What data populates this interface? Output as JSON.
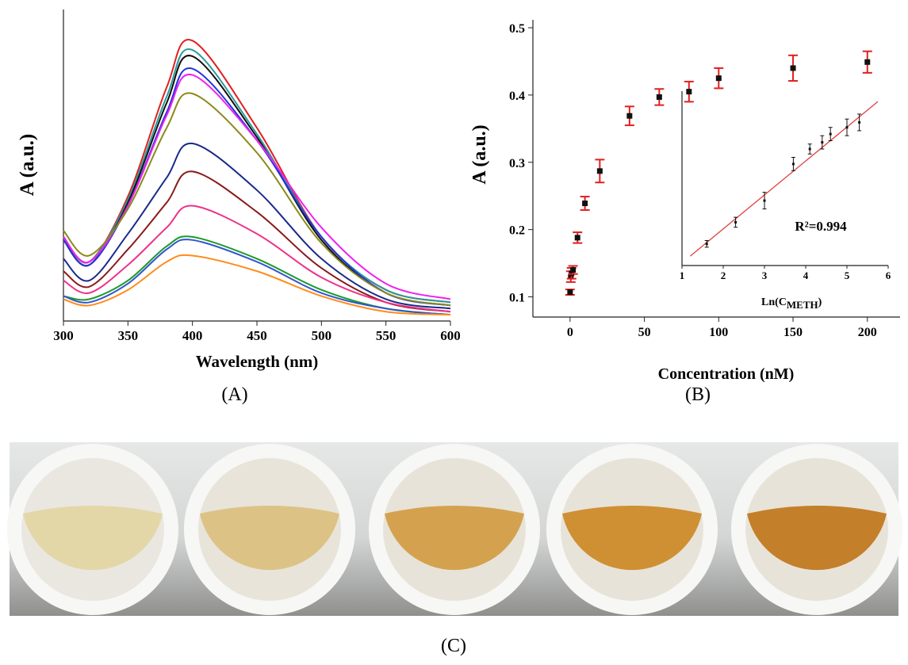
{
  "chart_data": [
    {
      "type": "line",
      "label": "(A)",
      "ylabel": "A (a.u.)",
      "xlabel": "Wavelength (nm)",
      "x": [
        300,
        320,
        350,
        380,
        400,
        450,
        500,
        550,
        600
      ],
      "xlim": [
        300,
        600
      ],
      "xticks": [
        300,
        350,
        400,
        450,
        500,
        550,
        600
      ],
      "ylim": [
        0,
        1
      ],
      "series": [
        {
          "color": "#e02020",
          "values": [
            0.27,
            0.19,
            0.4,
            0.75,
            0.9,
            0.62,
            0.27,
            0.1,
            0.06
          ]
        },
        {
          "color": "#2a9a9a",
          "values": [
            0.27,
            0.19,
            0.39,
            0.72,
            0.87,
            0.6,
            0.27,
            0.1,
            0.06
          ]
        },
        {
          "color": "#111111",
          "values": [
            0.26,
            0.18,
            0.38,
            0.7,
            0.85,
            0.59,
            0.26,
            0.09,
            0.05
          ]
        },
        {
          "color": "#2233dd",
          "values": [
            0.26,
            0.18,
            0.37,
            0.67,
            0.81,
            0.58,
            0.27,
            0.09,
            0.05
          ]
        },
        {
          "color": "#ee22ee",
          "values": [
            0.27,
            0.19,
            0.37,
            0.66,
            0.79,
            0.58,
            0.3,
            0.12,
            0.07
          ]
        },
        {
          "color": "#8a8a1a",
          "values": [
            0.29,
            0.21,
            0.36,
            0.62,
            0.73,
            0.54,
            0.25,
            0.09,
            0.05
          ]
        },
        {
          "color": "#1a2a8a",
          "values": [
            0.2,
            0.13,
            0.28,
            0.46,
            0.57,
            0.42,
            0.2,
            0.07,
            0.04
          ]
        },
        {
          "color": "#8a1a1a",
          "values": [
            0.16,
            0.11,
            0.23,
            0.38,
            0.48,
            0.35,
            0.17,
            0.06,
            0.03
          ]
        },
        {
          "color": "#ee3388",
          "values": [
            0.13,
            0.09,
            0.18,
            0.3,
            0.37,
            0.28,
            0.14,
            0.06,
            0.03
          ]
        },
        {
          "color": "#1a9a2a",
          "values": [
            0.08,
            0.07,
            0.13,
            0.24,
            0.27,
            0.2,
            0.1,
            0.04,
            0.02
          ]
        },
        {
          "color": "#3355cc",
          "values": [
            0.08,
            0.06,
            0.12,
            0.23,
            0.26,
            0.19,
            0.09,
            0.04,
            0.02
          ]
        },
        {
          "color": "#ff8c1a",
          "values": [
            0.07,
            0.05,
            0.1,
            0.19,
            0.21,
            0.16,
            0.08,
            0.03,
            0.02
          ]
        }
      ]
    },
    {
      "type": "scatter",
      "label": "(B)",
      "ylabel": "A (a.u.)",
      "xlabel": "Concentration (nM)",
      "x": [
        0,
        0.5,
        1,
        2,
        5,
        10,
        20,
        40,
        60,
        80,
        100,
        150,
        200
      ],
      "values": [
        0.107,
        0.13,
        0.135,
        0.14,
        0.188,
        0.239,
        0.287,
        0.369,
        0.397,
        0.405,
        0.425,
        0.44,
        0.449
      ],
      "errors": [
        0.004,
        0.008,
        0.008,
        0.006,
        0.008,
        0.01,
        0.017,
        0.014,
        0.012,
        0.015,
        0.015,
        0.019,
        0.016
      ],
      "color": "#111111",
      "error_color": "#e02020",
      "xlim": [
        -25,
        222
      ],
      "xticks": [
        0,
        50,
        100,
        150,
        200
      ],
      "ylim": [
        0.07,
        0.5
      ],
      "yticks": [
        0.1,
        0.2,
        0.3,
        0.4,
        0.5
      ]
    },
    {
      "type": "scatter",
      "xlabel": {
        "text": "Ln(C",
        "subscript": "METH",
        "close": ")"
      },
      "annotation": "R²=0.994",
      "x": [
        1.6,
        2.3,
        3.0,
        3.7,
        4.1,
        4.4,
        4.6,
        5.0,
        5.3
      ],
      "values": [
        0.13,
        0.26,
        0.39,
        0.61,
        0.7,
        0.74,
        0.79,
        0.83,
        0.86
      ],
      "errors": [
        0.02,
        0.03,
        0.05,
        0.04,
        0.03,
        0.04,
        0.04,
        0.05,
        0.05
      ],
      "color": "#111111",
      "error_color": "#111111",
      "fit": {
        "slope": 0.204,
        "intercept": -0.188,
        "x": [
          1.2,
          5.75
        ],
        "color": "#e04040"
      },
      "xlim": [
        1,
        6
      ],
      "xticks": [
        1,
        2,
        3,
        4,
        5,
        6
      ],
      "ylim": [
        0,
        1
      ]
    }
  ],
  "photo": {
    "label": "(C)"
  }
}
